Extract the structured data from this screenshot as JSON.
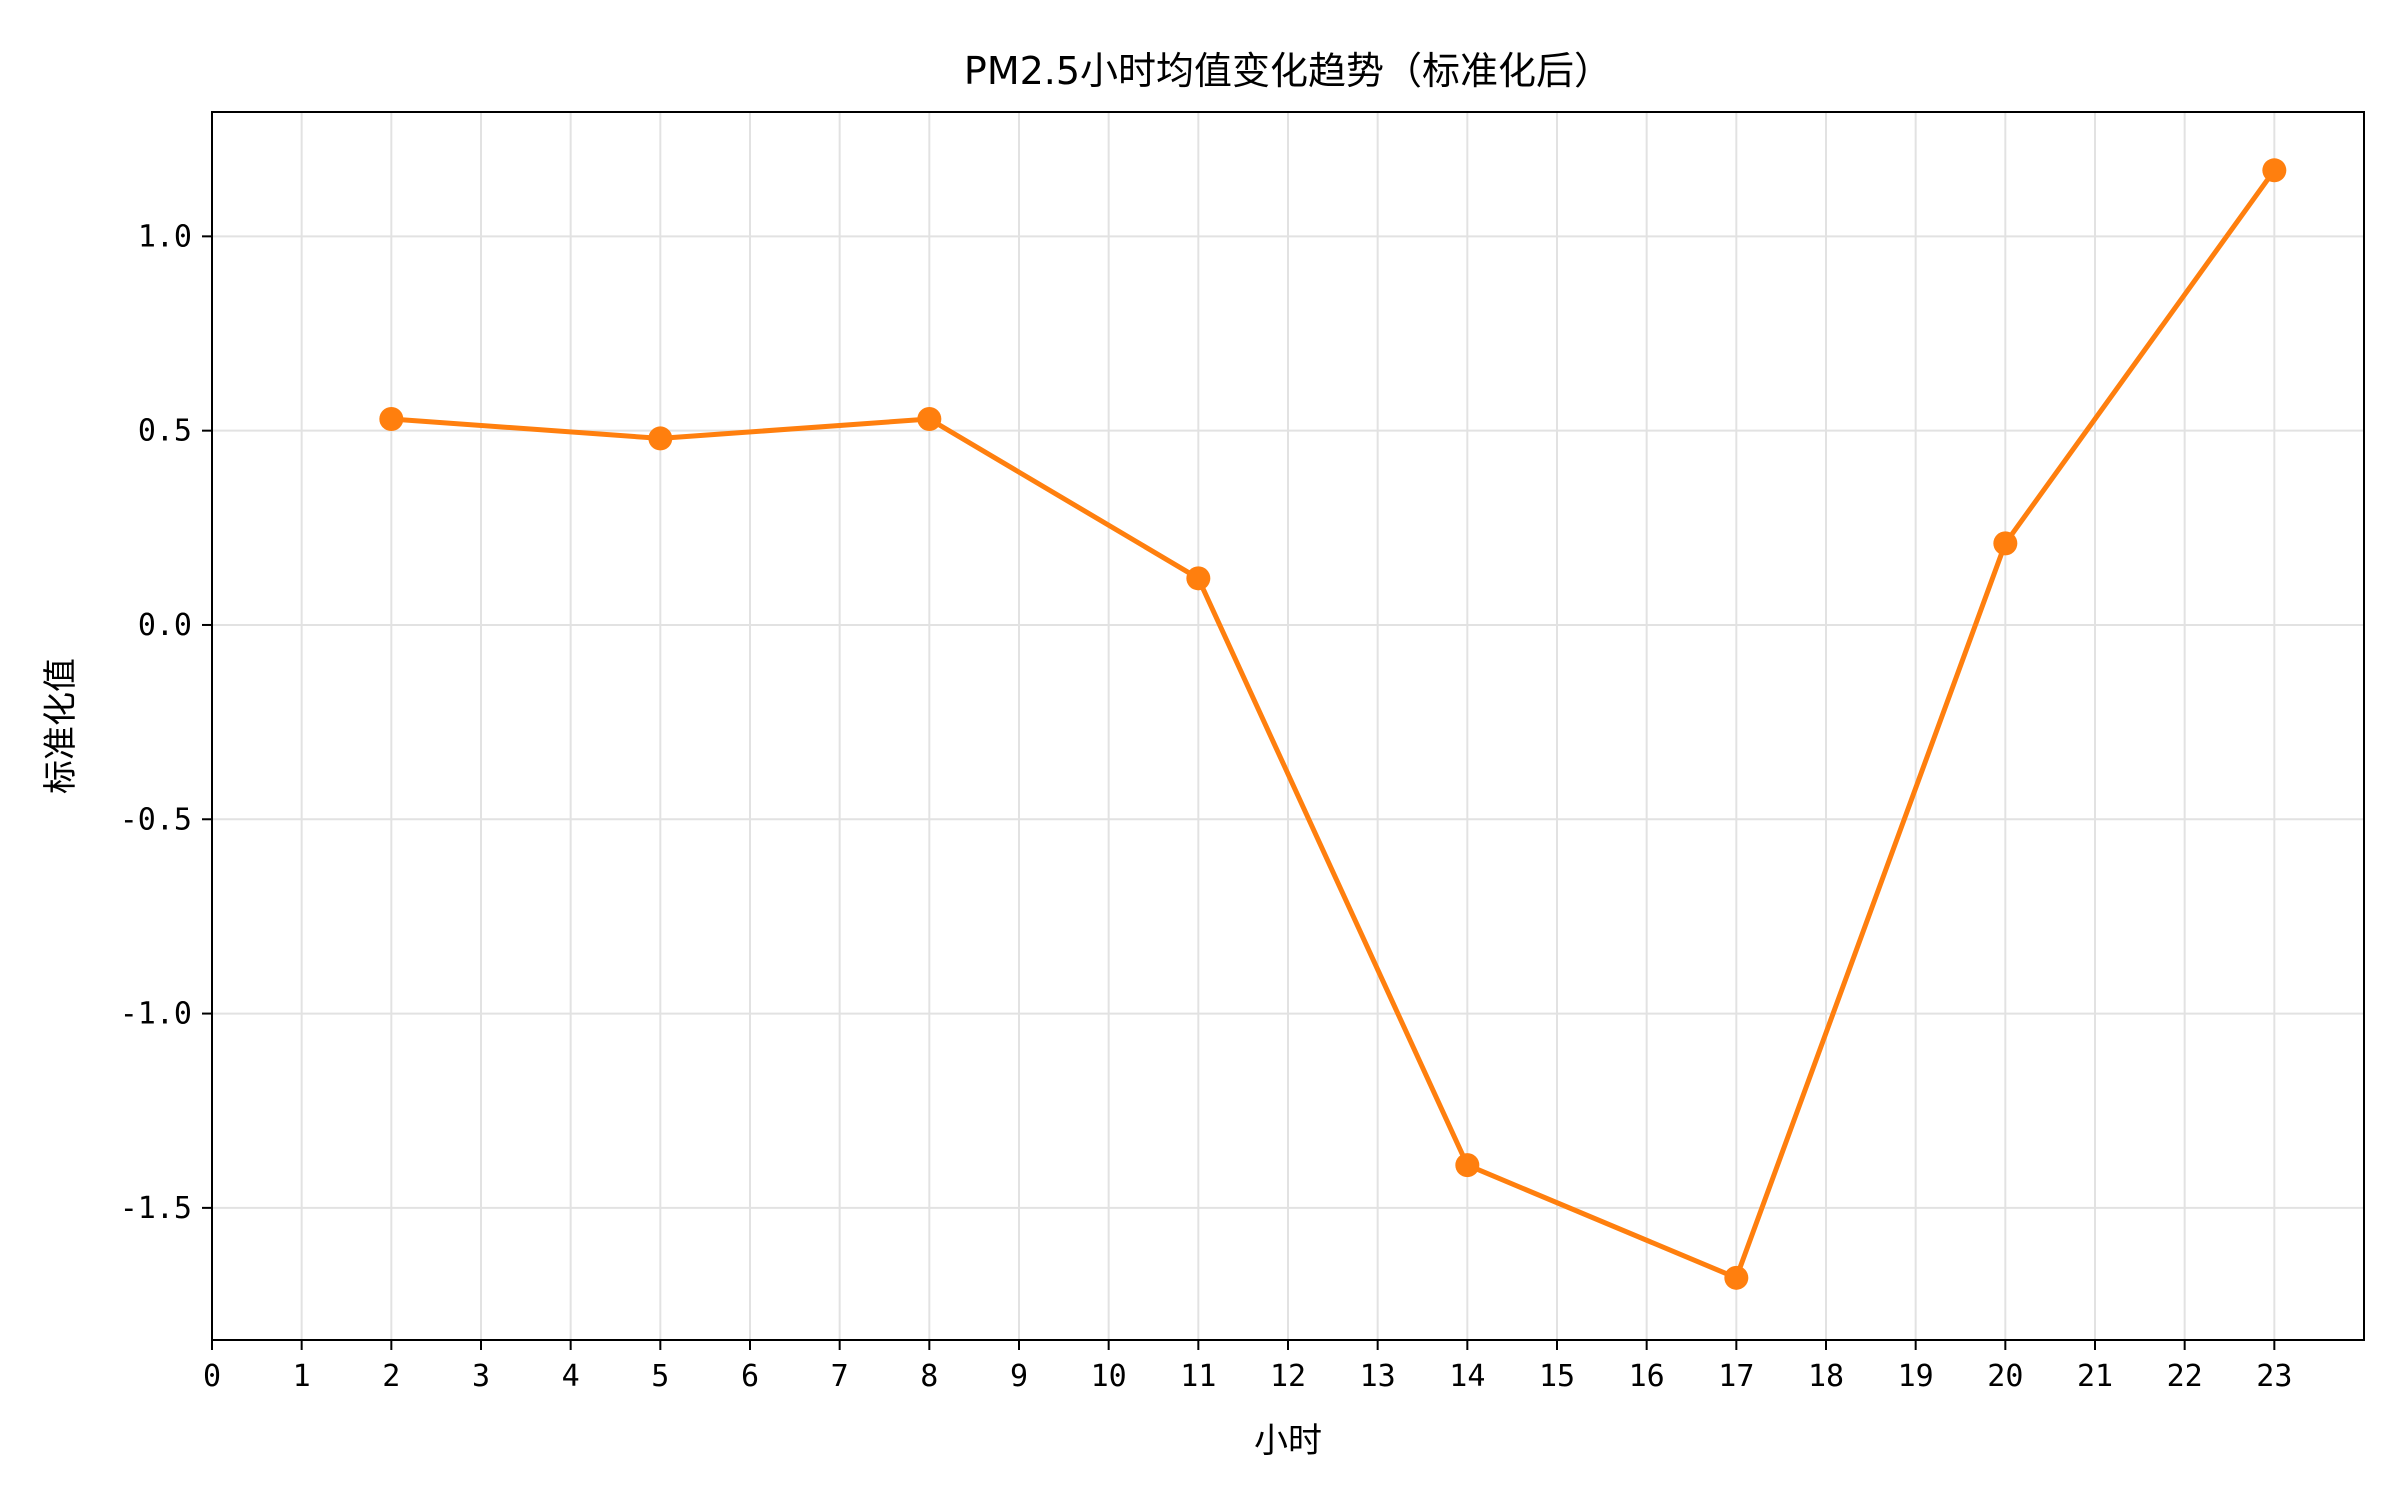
{
  "chart_data": {
    "type": "line",
    "title": "PM2.5小时均值变化趋势（标准化后）",
    "xlabel": "小时",
    "ylabel": "标准化值",
    "x_ticks": [
      "0",
      "1",
      "2",
      "3",
      "4",
      "5",
      "6",
      "7",
      "8",
      "9",
      "10",
      "11",
      "12",
      "13",
      "14",
      "15",
      "16",
      "17",
      "18",
      "19",
      "20",
      "21",
      "22",
      "23"
    ],
    "y_ticks": [
      "-1.5",
      "-1.0",
      "-0.5",
      "0.0",
      "0.5",
      "1.0"
    ],
    "xlim": [
      0,
      24
    ],
    "ylim": [
      -1.84,
      1.32
    ],
    "grid": true,
    "series": [
      {
        "color": "#ff7f0e",
        "marker": "circle",
        "points": [
          {
            "x": 2,
            "y": 0.53
          },
          {
            "x": 5,
            "y": 0.48
          },
          {
            "x": 8,
            "y": 0.53
          },
          {
            "x": 11,
            "y": 0.12
          },
          {
            "x": 14,
            "y": -1.39
          },
          {
            "x": 17,
            "y": -1.68
          },
          {
            "x": 20,
            "y": 0.21
          },
          {
            "x": 23,
            "y": 1.17
          }
        ]
      }
    ]
  }
}
